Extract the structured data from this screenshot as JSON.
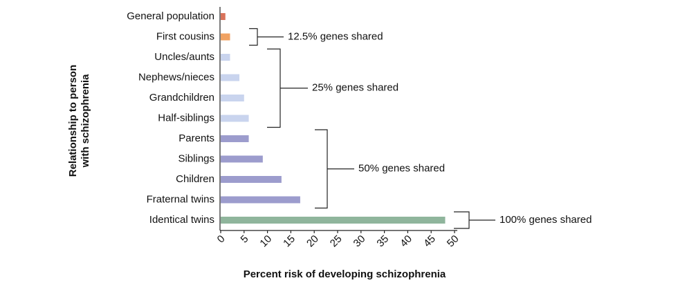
{
  "chart_data": {
    "type": "bar",
    "orientation": "horizontal",
    "x_label": "Percent risk of developing schizophrenia",
    "y_label": [
      "Relationship to person",
      "with schizophrenia"
    ],
    "categories": [
      "General population",
      "First cousins",
      "Uncles/aunts",
      "Nephews/nieces",
      "Grandchildren",
      "Half-siblings",
      "Parents",
      "Siblings",
      "Children",
      "Fraternal twins",
      "Identical twins"
    ],
    "values": [
      1,
      2,
      2,
      4,
      5,
      6,
      6,
      9,
      13,
      17,
      48
    ],
    "colors": [
      "#d9735b",
      "#f0a262",
      "#c9d4ee",
      "#c9d4ee",
      "#c9d4ee",
      "#c9d4ee",
      "#9c9ccd",
      "#9c9ccd",
      "#9c9ccd",
      "#9c9ccd",
      "#8fb59c"
    ],
    "xlim": [
      0,
      50
    ],
    "xticks": [
      0,
      5,
      10,
      15,
      20,
      25,
      30,
      35,
      40,
      45,
      50
    ],
    "annotations": [
      "12.5% genes shared",
      "25% genes shared",
      "50% genes shared",
      "100% genes shared"
    ]
  }
}
